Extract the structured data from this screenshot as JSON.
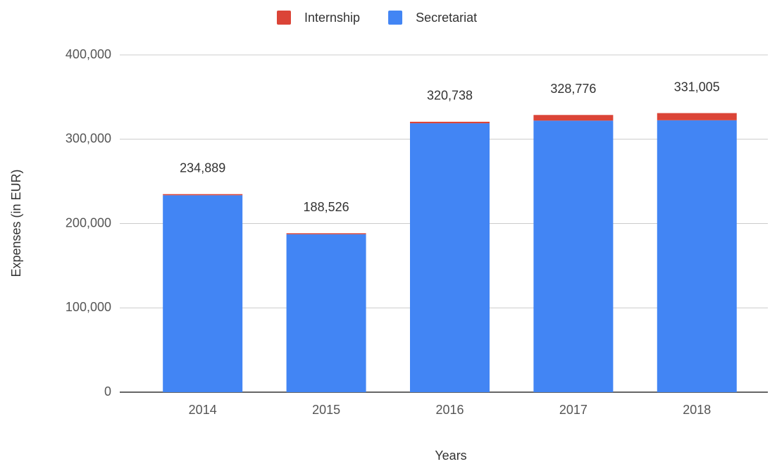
{
  "chart_data": {
    "type": "stacked_bar",
    "x_label": "Years",
    "y_label": "Expenses (in EUR)",
    "categories": [
      "2014",
      "2015",
      "2016",
      "2017",
      "2018"
    ],
    "series": [
      {
        "name": "Secretariat",
        "color": "#4285f4",
        "values": [
          233589,
          187326,
          318938,
          322076,
          322505
        ]
      },
      {
        "name": "Internship",
        "color": "#db4437",
        "values": [
          1300,
          1200,
          1800,
          6700,
          8500
        ]
      }
    ],
    "totals": [
      234889,
      188526,
      320738,
      328776,
      331005
    ],
    "total_labels": [
      "234,889",
      "188,526",
      "320,738",
      "328,776",
      "331,005"
    ],
    "ylim": [
      0,
      400000
    ],
    "yticks": [
      0,
      {
        "value": 100000,
        "label": "100,000"
      },
      {
        "value": 200000,
        "label": "200,000"
      },
      {
        "value": 300000,
        "label": "300,000"
      },
      {
        "value": 400000,
        "label": "400,000"
      }
    ],
    "grid": true,
    "legend": "top"
  }
}
